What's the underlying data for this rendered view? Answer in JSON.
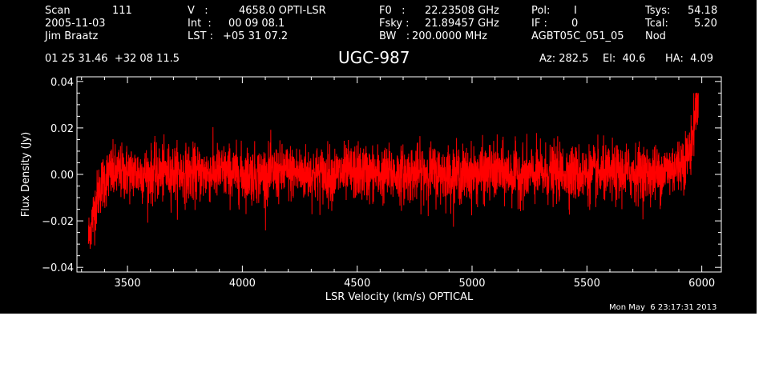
{
  "header": {
    "scan_label": "Scan",
    "scan_value": "111",
    "date": "2005-11-03",
    "observer": "Jim Braatz",
    "coords": "01 25 31.46  +32 08 11.5",
    "v_label": "V   :",
    "v_value": "4658.0 OPTI-LSR",
    "int_label": "Int  :",
    "int_value": "00 09 08.1",
    "lst_label": "LST :",
    "lst_value": "+05 31 07.2",
    "f0_label": "F0   :",
    "f0_value": "22.23508 GHz",
    "fsky_label": "Fsky :",
    "fsky_value": "21.89457 GHz",
    "bw_label": "BW   :",
    "bw_value": "200.0000 MHz",
    "pol_label": "Pol:",
    "pol_value": "I",
    "if_label": "IF :",
    "if_value": "0",
    "project": "AGBT05C_051_05",
    "tsys_label": "Tsys:",
    "tsys_value": "54.18",
    "tcal_label": "Tcal:",
    "tcal_value": "5.20",
    "mode": "Nod",
    "az": "Az: 282.5",
    "el": "El:  40.6",
    "ha": "HA:  4.09"
  },
  "footer": {
    "timestamp": "Mon May  6 23:17:31 2013"
  },
  "chart_data": {
    "type": "line",
    "title": "UGC-987",
    "xlabel": "LSR Velocity (km/s) OPTICAL",
    "ylabel": "Flux Density (Jy)",
    "xlim": [
      3280,
      6085
    ],
    "ylim": [
      -0.042,
      0.042
    ],
    "xticks": [
      3500,
      4000,
      4500,
      5000,
      5500,
      6000
    ],
    "xtick_labels": [
      "3500",
      "4000",
      "4500",
      "5000",
      "5500",
      "6000"
    ],
    "yticks": [
      -0.04,
      -0.02,
      0.0,
      0.02,
      0.04
    ],
    "ytick_labels": [
      "−0.04",
      "−0.02",
      "0.00",
      "0.02",
      "0.04"
    ],
    "background": "#000000",
    "axis_color": "#ffffff",
    "grid": false,
    "series": [
      {
        "color": "#ff0000",
        "x": [
          3330,
          3350,
          3380,
          3420,
          3500,
          3600,
          3700,
          3800,
          3900,
          4000,
          4100,
          4200,
          4300,
          4400,
          4500,
          4600,
          4700,
          4800,
          4900,
          5000,
          5100,
          5200,
          5300,
          5400,
          5500,
          5600,
          5700,
          5800,
          5850,
          5900,
          5940,
          5960,
          5975,
          5985
        ],
        "values": [
          -0.028,
          -0.018,
          -0.005,
          0.0,
          0.001,
          0.0,
          0.001,
          0.0,
          0.001,
          0.0,
          0.0,
          0.001,
          0.0,
          0.0,
          0.001,
          0.0,
          0.0,
          0.001,
          0.0,
          0.0,
          0.001,
          0.0,
          0.0,
          0.001,
          0.0,
          0.0,
          0.001,
          0.0,
          0.002,
          0.004,
          0.008,
          0.015,
          0.03,
          0.034
        ],
        "noise_rms": 0.006,
        "min_value": -0.032,
        "max_value": 0.035
      }
    ]
  }
}
